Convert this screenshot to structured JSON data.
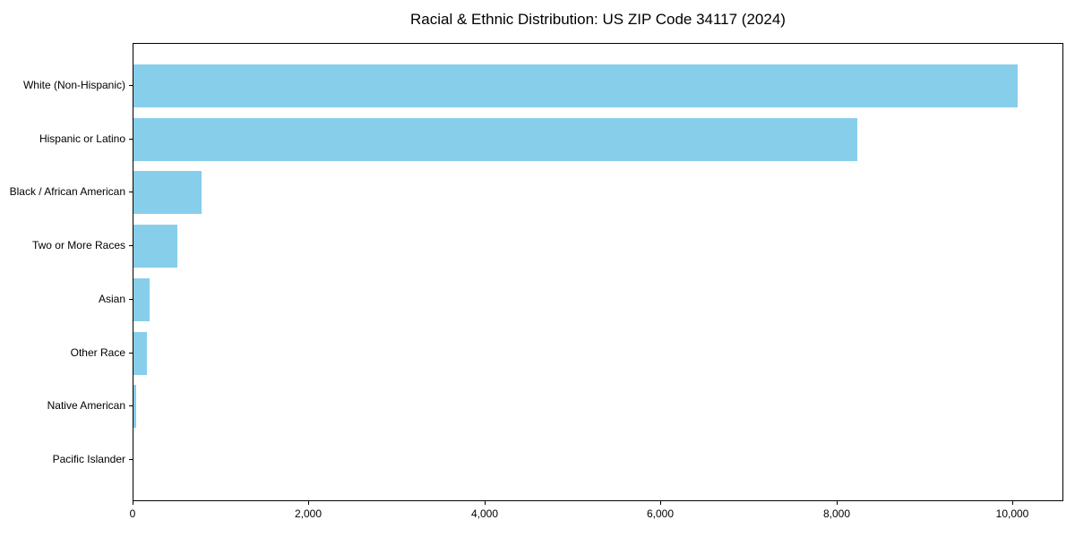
{
  "chart_data": {
    "type": "bar",
    "orientation": "horizontal",
    "title": "Racial & Ethnic Distribution: US ZIP Code 34117 (2024)",
    "categories": [
      "White (Non-Hispanic)",
      "Hispanic or Latino",
      "Black / African American",
      "Two or More Races",
      "Asian",
      "Other Race",
      "Native American",
      "Pacific Islander"
    ],
    "values": [
      10050,
      8230,
      770,
      500,
      180,
      150,
      30,
      0
    ],
    "xlabel": "",
    "ylabel": "",
    "xlim": [
      0,
      10580
    ],
    "xticks": {
      "values": [
        0,
        2000,
        4000,
        6000,
        8000,
        10000
      ],
      "labels": [
        "0",
        "2,000",
        "4,000",
        "6,000",
        "8,000",
        "10,000"
      ]
    },
    "bar_color": "#87CEEB",
    "grid": false,
    "legend": null,
    "background_color": "#ffffff",
    "spine_color": "#000000"
  }
}
